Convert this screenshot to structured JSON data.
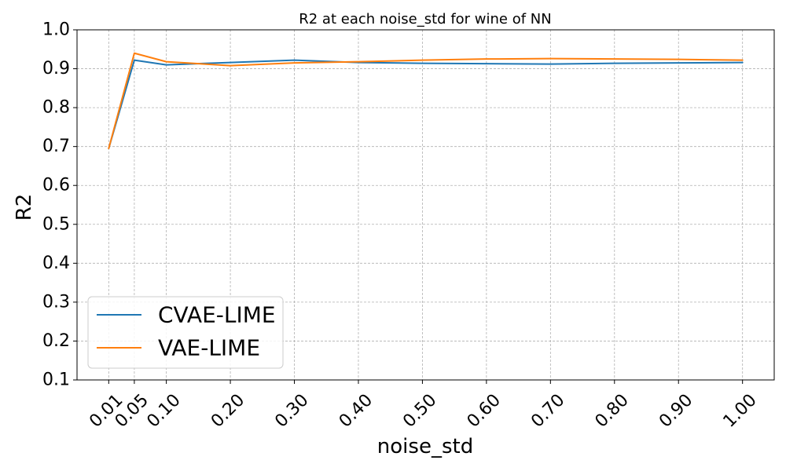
{
  "chart_data": {
    "type": "line",
    "title": "R2 at each noise_std for wine of NN",
    "xlabel": "noise_std",
    "ylabel": "R2",
    "x": [
      0.01,
      0.05,
      0.1,
      0.2,
      0.3,
      0.4,
      0.5,
      0.6,
      0.7,
      0.8,
      0.9,
      1.0
    ],
    "x_tick_labels": [
      "0.01",
      "0.05",
      "0.10",
      "0.20",
      "0.30",
      "0.40",
      "0.50",
      "0.60",
      "0.70",
      "0.80",
      "0.90",
      "1.00"
    ],
    "y_ticks": [
      0.1,
      0.2,
      0.3,
      0.4,
      0.5,
      0.6,
      0.7,
      0.8,
      0.9,
      1.0
    ],
    "y_tick_labels": [
      "0.1",
      "0.2",
      "0.3",
      "0.4",
      "0.5",
      "0.6",
      "0.7",
      "0.8",
      "0.9",
      "1.0"
    ],
    "xlim": [
      -0.0395,
      1.0495
    ],
    "ylim": [
      0.1,
      1.0
    ],
    "grid": true,
    "legend_position": "lower-left",
    "series": [
      {
        "name": "CVAE-LIME",
        "color": "#1f77b4",
        "values": [
          0.695,
          0.922,
          0.91,
          0.916,
          0.922,
          0.916,
          0.914,
          0.913,
          0.912,
          0.914,
          0.915,
          0.916
        ]
      },
      {
        "name": "VAE-LIME",
        "color": "#ff7f0e",
        "values": [
          0.695,
          0.94,
          0.918,
          0.908,
          0.915,
          0.918,
          0.922,
          0.925,
          0.926,
          0.925,
          0.924,
          0.922
        ]
      }
    ]
  }
}
